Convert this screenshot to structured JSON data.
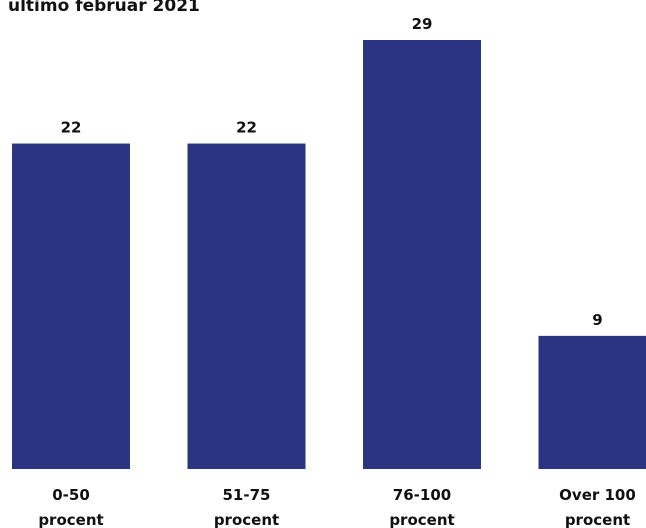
{
  "chart_data": {
    "type": "bar",
    "title": "ultimo februar 2021",
    "categories": [
      [
        "0-50",
        "procent"
      ],
      [
        "51-75",
        "procent"
      ],
      [
        "76-100",
        "procent"
      ],
      [
        "Over 100",
        "procent"
      ]
    ],
    "values": [
      22,
      22,
      29,
      9
    ],
    "xlabel": "",
    "ylabel": "",
    "ylim": [
      0,
      29
    ],
    "grid": false,
    "bar_color": "#2b3481",
    "text_color": "#111111"
  }
}
